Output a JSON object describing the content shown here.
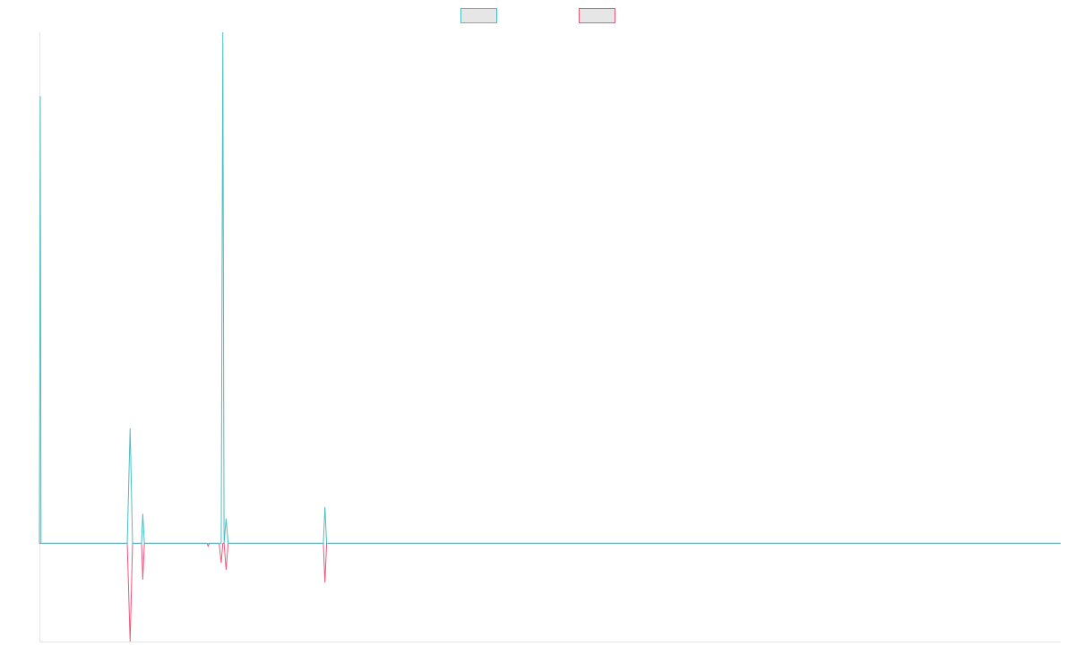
{
  "chart_data": {
    "type": "line",
    "title": "",
    "xlabel": "",
    "ylabel": "",
    "grid": false,
    "legend_position": "top-center",
    "x_range": [
      0,
      250
    ],
    "ylim": [
      -100,
      520
    ],
    "series": [
      {
        "color": "#4bbfc3",
        "legend_fill": "#e6e6e6",
        "points": [
          [
            0,
            0
          ],
          [
            0.2,
            455
          ],
          [
            0.4,
            0
          ],
          [
            21.5,
            0
          ],
          [
            22.2,
            117
          ],
          [
            22.8,
            0
          ],
          [
            25,
            0
          ],
          [
            25.3,
            30
          ],
          [
            25.7,
            0
          ],
          [
            44,
            0
          ],
          [
            44.5,
            0
          ],
          [
            44.9,
            520
          ],
          [
            45.2,
            0
          ],
          [
            45.7,
            25
          ],
          [
            46.2,
            0
          ],
          [
            69.5,
            0
          ],
          [
            69.9,
            37
          ],
          [
            70.3,
            0
          ],
          [
            250,
            0
          ]
        ]
      },
      {
        "color": "#f0577b",
        "legend_fill": "#e6e6e6",
        "points": [
          [
            0,
            0
          ],
          [
            21.5,
            0
          ],
          [
            22.2,
            -100
          ],
          [
            22.8,
            0
          ],
          [
            25,
            0
          ],
          [
            25.3,
            -37
          ],
          [
            25.7,
            0
          ],
          [
            41,
            0
          ],
          [
            41.3,
            -3
          ],
          [
            41.6,
            0
          ],
          [
            44,
            0
          ],
          [
            44.5,
            -20
          ],
          [
            44.9,
            0
          ],
          [
            45.2,
            0
          ],
          [
            45.7,
            -27
          ],
          [
            46.2,
            0
          ],
          [
            69.5,
            0
          ],
          [
            69.9,
            -40
          ],
          [
            70.3,
            0
          ],
          [
            250,
            0
          ]
        ]
      }
    ]
  }
}
